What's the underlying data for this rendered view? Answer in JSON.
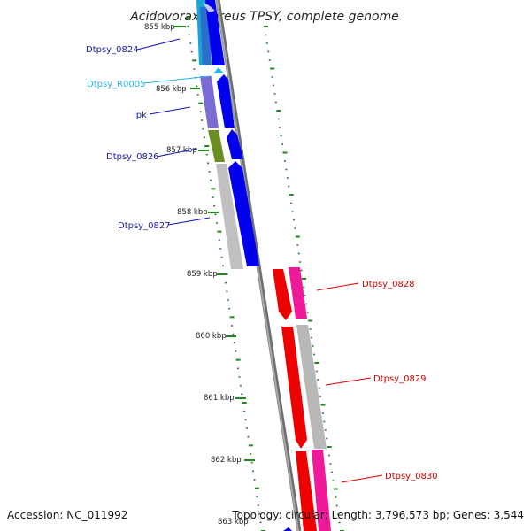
{
  "title": "Acidovorax ebreus TPSY, complete genome",
  "accession": "Accession: NC_011992",
  "topology": "Topology: circular; Length: 3,796,573 bp; Genes: 3,544",
  "colors": {
    "blue": "#0000ee",
    "cyan_label": "#29b6e6",
    "purple": "#7b6cd3",
    "olive": "#6b8e23",
    "grey": "#b8b8b8",
    "red": "#ee0000",
    "magenta": "#ee1a9a",
    "tick_green": "#1e8a1e",
    "backbone": "#8a8a8a"
  },
  "ticks": [
    "855 kbp",
    "856 kbp",
    "857 kbp",
    "858 kbp",
    "859 kbp",
    "860 kbp",
    "861 kbp",
    "862 kbp",
    "863 kbp"
  ],
  "genes_left": [
    {
      "label": "Dtpsy_0824",
      "color": "blue"
    },
    {
      "label": "Dtpsy_R0005",
      "color": "cyan"
    },
    {
      "label": "ipk",
      "color": "blue"
    },
    {
      "label": "Dtpsy_0826",
      "color": "blue"
    },
    {
      "label": "Dtpsy_0827",
      "color": "blue"
    }
  ],
  "genes_right": [
    {
      "label": "Dtpsy_0828",
      "color": "red"
    },
    {
      "label": "Dtpsy_0829",
      "color": "red"
    },
    {
      "label": "Dtpsy_0830",
      "color": "red"
    }
  ]
}
